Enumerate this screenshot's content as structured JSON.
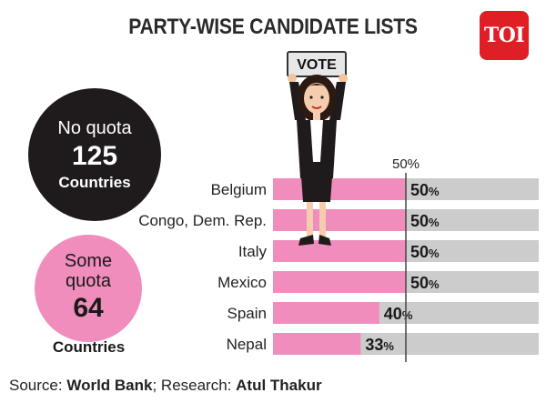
{
  "header": {
    "title": "PARTY-WISE CANDIDATE LISTS",
    "logo": "TOI"
  },
  "bubbles": {
    "no_quota": {
      "label": "No quota",
      "count": "125",
      "unit": "Countries"
    },
    "some_quota": {
      "label_line1": "Some",
      "label_line2": "quota",
      "count": "64",
      "unit": "Countries"
    }
  },
  "figure": {
    "sign_text": "VOTE"
  },
  "chart_data": {
    "type": "bar",
    "orientation": "horizontal",
    "categories": [
      "Belgium",
      "Congo, Dem. Rep.",
      "Italy",
      "Mexico",
      "Spain",
      "Nepal"
    ],
    "values": [
      50,
      50,
      50,
      50,
      40,
      33
    ],
    "value_labels": [
      "50%",
      "50%",
      "50%",
      "50%",
      "40%",
      "33%"
    ],
    "reference_line": {
      "value": 50,
      "label": "50%"
    },
    "xlim": [
      0,
      100
    ],
    "colors": {
      "bar": "#f08dbd",
      "track": "#cccccc",
      "line": "#444444"
    }
  },
  "source": {
    "prefix": "Source:",
    "source_name": "World Bank",
    "research_prefix": "; Research:",
    "researcher": "Atul Thakur"
  }
}
